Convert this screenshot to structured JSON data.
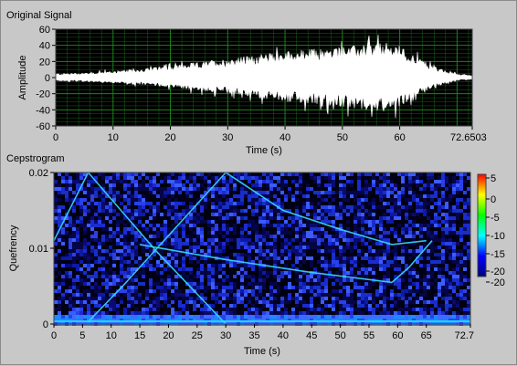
{
  "window": {
    "signal_title": "Original Signal",
    "cepstrogram_title": "Cepstrogram"
  },
  "chart_data": [
    {
      "type": "area",
      "title": "Original Signal",
      "xlabel": "Time (s)",
      "ylabel": "Amplitude",
      "xlim": [
        0,
        72.6503
      ],
      "ylim": [
        -60,
        60
      ],
      "x_ticks": [
        "0",
        "10",
        "20",
        "30",
        "40",
        "50",
        "60",
        "72.6503"
      ],
      "y_ticks": [
        "60",
        "40",
        "20",
        "0",
        "-20",
        "-40",
        "-60"
      ],
      "grid": true,
      "colors": {
        "plot_bg": "#000000",
        "grid": "#1d8a1d",
        "trace": "#ffffff"
      },
      "envelope": {
        "x": [
          0,
          5,
          10,
          15,
          20,
          25,
          30,
          35,
          40,
          45,
          50,
          55,
          57,
          60,
          62,
          65,
          68,
          70,
          72.65
        ],
        "upper": [
          5,
          6,
          8,
          11,
          15,
          19,
          24,
          28,
          33,
          36,
          38,
          42,
          44,
          40,
          30,
          18,
          8,
          5,
          3
        ],
        "lower": [
          -4,
          -5,
          -7,
          -9,
          -12,
          -16,
          -20,
          -25,
          -30,
          -33,
          -37,
          -40,
          -42,
          -36,
          -26,
          -15,
          -7,
          -4,
          -2
        ]
      }
    },
    {
      "type": "heatmap",
      "title": "Cepstrogram",
      "xlabel": "Time (s)",
      "ylabel": "Quefrency",
      "xlim": [
        0,
        72.7
      ],
      "ylim": [
        0,
        0.02
      ],
      "x_ticks": [
        "0",
        "5",
        "10",
        "15",
        "20",
        "25",
        "30",
        "35",
        "40",
        "45",
        "50",
        "55",
        "60",
        "65",
        "72.7"
      ],
      "y_ticks": [
        "0.02",
        "0.01",
        "0"
      ],
      "colorbar": {
        "range": [
          -20,
          5
        ],
        "ticks": [
          "5",
          "0",
          "-5",
          "-10",
          "-15",
          "-20",
          "-20"
        ],
        "colors": [
          "#ff0000",
          "#ffff00",
          "#00ff00",
          "#00ffff",
          "#0000ff",
          "#000080"
        ]
      },
      "curves": [
        {
          "x": [
            0,
            6,
            18,
            30
          ],
          "y": [
            0.011,
            0.02,
            0.0095,
            0.0
          ]
        },
        {
          "x": [
            6,
            12,
            18,
            24,
            30
          ],
          "y": [
            0.0003,
            0.005,
            0.01,
            0.015,
            0.02
          ]
        },
        {
          "x": [
            30,
            40,
            50,
            59,
            65
          ],
          "y": [
            0.02,
            0.015,
            0.0125,
            0.0105,
            0.011
          ]
        },
        {
          "x": [
            15,
            30,
            45,
            59
          ],
          "y": [
            0.0105,
            0.0085,
            0.0068,
            0.0055
          ]
        },
        {
          "x": [
            59,
            62,
            66
          ],
          "y": [
            0.0055,
            0.0075,
            0.011
          ]
        }
      ]
    }
  ]
}
